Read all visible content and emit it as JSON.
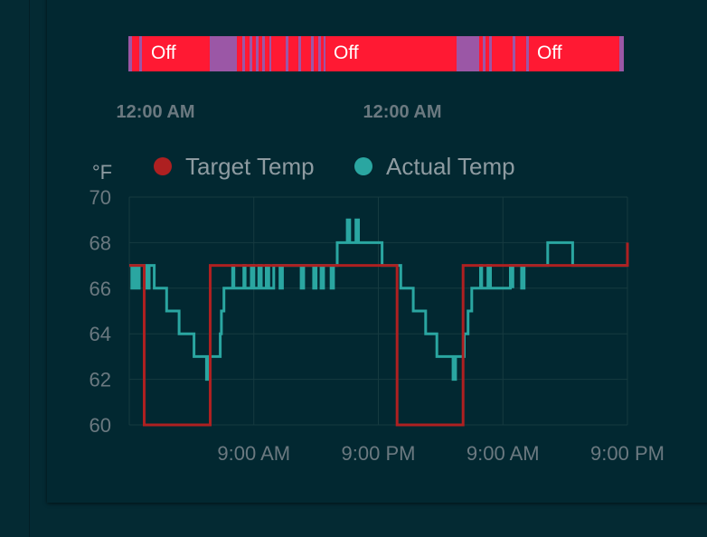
{
  "history_bar": {
    "state_labels": [
      "Off",
      "Off",
      "Off"
    ],
    "time_labels": [
      "12:00 AM",
      "12:00 AM"
    ]
  },
  "chart_data": {
    "type": "line",
    "ylabel": "°F",
    "ylim": [
      60,
      70
    ],
    "y_ticks": [
      60,
      62,
      64,
      66,
      68,
      70
    ],
    "x_tick_labels": [
      "9:00 AM",
      "9:00 PM",
      "9:00 AM",
      "9:00 PM"
    ],
    "grid": true,
    "legend_position": "top",
    "series": [
      {
        "name": "Target Temp",
        "color": "#ae2021",
        "step": true,
        "points": [
          [
            0,
            67
          ],
          [
            1.2,
            67
          ],
          [
            1.2,
            60
          ],
          [
            6.5,
            60
          ],
          [
            6.5,
            67
          ],
          [
            21.5,
            67
          ],
          [
            21.5,
            60
          ],
          [
            26.8,
            60
          ],
          [
            26.8,
            67
          ],
          [
            40,
            67
          ],
          [
            40,
            68
          ]
        ]
      },
      {
        "name": "Actual Temp",
        "color": "#2aa6a1",
        "step": true,
        "points": [
          [
            0,
            67
          ],
          [
            0.2,
            66
          ],
          [
            0.4,
            67
          ],
          [
            0.6,
            66
          ],
          [
            0.8,
            67
          ],
          [
            1.2,
            67
          ],
          [
            1.4,
            66
          ],
          [
            1.6,
            67
          ],
          [
            1.8,
            67
          ],
          [
            2.0,
            66
          ],
          [
            2.8,
            66
          ],
          [
            3.0,
            65
          ],
          [
            3.9,
            65
          ],
          [
            4.0,
            64
          ],
          [
            5.1,
            64
          ],
          [
            5.2,
            63
          ],
          [
            6.1,
            63
          ],
          [
            6.2,
            62
          ],
          [
            6.3,
            63
          ],
          [
            7.2,
            63
          ],
          [
            7.3,
            64
          ],
          [
            7.4,
            65
          ],
          [
            7.6,
            66
          ],
          [
            8.2,
            66
          ],
          [
            8.3,
            67
          ],
          [
            8.4,
            66
          ],
          [
            9.1,
            66
          ],
          [
            9.2,
            67
          ],
          [
            9.3,
            66
          ],
          [
            9.6,
            66
          ],
          [
            9.8,
            67
          ],
          [
            10.0,
            66
          ],
          [
            10.3,
            66
          ],
          [
            10.4,
            67
          ],
          [
            10.6,
            66
          ],
          [
            10.8,
            66
          ],
          [
            11.0,
            67
          ],
          [
            11.2,
            66
          ],
          [
            11.5,
            66
          ],
          [
            11.6,
            67
          ],
          [
            11.9,
            67
          ],
          [
            12.1,
            66
          ],
          [
            12.3,
            67
          ],
          [
            13.6,
            67
          ],
          [
            13.8,
            66
          ],
          [
            14.0,
            67
          ],
          [
            14.6,
            67
          ],
          [
            14.8,
            66
          ],
          [
            15.0,
            67
          ],
          [
            15.2,
            67
          ],
          [
            15.4,
            66
          ],
          [
            15.6,
            67
          ],
          [
            16.1,
            67
          ],
          [
            16.2,
            66
          ],
          [
            16.4,
            67
          ],
          [
            16.6,
            67
          ],
          [
            16.7,
            68
          ],
          [
            17.4,
            68
          ],
          [
            17.5,
            69
          ],
          [
            17.7,
            68
          ],
          [
            18.1,
            68
          ],
          [
            18.2,
            69
          ],
          [
            18.4,
            68
          ],
          [
            20.1,
            68
          ],
          [
            20.3,
            67
          ],
          [
            21.6,
            67
          ],
          [
            21.8,
            66
          ],
          [
            22.6,
            66
          ],
          [
            22.8,
            65
          ],
          [
            23.6,
            65
          ],
          [
            23.8,
            64
          ],
          [
            24.6,
            64
          ],
          [
            24.7,
            63
          ],
          [
            25.9,
            63
          ],
          [
            26.0,
            62
          ],
          [
            26.2,
            63
          ],
          [
            26.7,
            63
          ],
          [
            26.9,
            64
          ],
          [
            27.2,
            65
          ],
          [
            27.5,
            66
          ],
          [
            28.1,
            66
          ],
          [
            28.2,
            67
          ],
          [
            28.3,
            66
          ],
          [
            28.6,
            66
          ],
          [
            28.8,
            67
          ],
          [
            29.0,
            66
          ],
          [
            29.6,
            66
          ],
          [
            30.4,
            66
          ],
          [
            30.6,
            67
          ],
          [
            30.8,
            66
          ],
          [
            30.8,
            67
          ],
          [
            31.4,
            67
          ],
          [
            31.5,
            66
          ],
          [
            31.7,
            67
          ],
          [
            33.5,
            67
          ],
          [
            33.6,
            68
          ],
          [
            35.5,
            68
          ],
          [
            35.6,
            67
          ],
          [
            40,
            67
          ]
        ]
      }
    ]
  }
}
